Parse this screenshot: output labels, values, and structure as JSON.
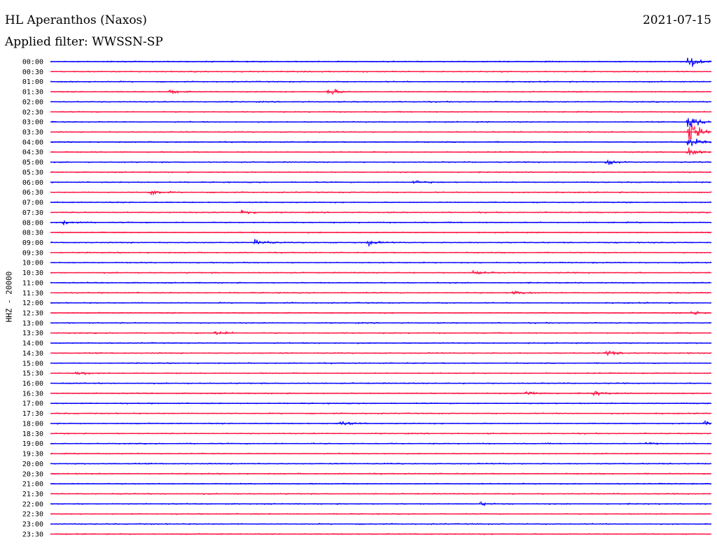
{
  "header": {
    "title": "HL Aperanthos (Naxos)",
    "date": "2021-07-15",
    "filter": "Applied filter: WWSSN-SP"
  },
  "chart_data": {
    "type": "line",
    "title": "HL Aperanthos (Naxos)",
    "ylabel": "HHZ - 20000",
    "colors": [
      "#0000ff",
      "#ff1040"
    ],
    "times": [
      "00:00",
      "00:30",
      "01:00",
      "01:30",
      "02:00",
      "02:30",
      "03:00",
      "03:30",
      "04:00",
      "04:30",
      "05:00",
      "05:30",
      "06:00",
      "06:30",
      "07:00",
      "07:30",
      "08:00",
      "08:30",
      "09:00",
      "09:30",
      "10:00",
      "10:30",
      "11:00",
      "11:30",
      "12:00",
      "12:30",
      "13:00",
      "13:30",
      "14:00",
      "14:30",
      "15:00",
      "15:30",
      "16:00",
      "16:30",
      "17:00",
      "17:30",
      "18:00",
      "18:30",
      "19:00",
      "19:30",
      "20:00",
      "20:30",
      "21:00",
      "21:30",
      "22:00",
      "22:30",
      "23:00",
      "23:30"
    ],
    "events": [
      {
        "row": 3,
        "pos": 0.18,
        "amp": 5
      },
      {
        "row": 3,
        "pos": 0.42,
        "amp": 9
      },
      {
        "row": 0,
        "pos": 0.965,
        "amp": 16
      },
      {
        "row": 6,
        "pos": 0.965,
        "amp": 20
      },
      {
        "row": 7,
        "pos": 0.965,
        "amp": 28
      },
      {
        "row": 8,
        "pos": 0.965,
        "amp": 18
      },
      {
        "row": 9,
        "pos": 0.965,
        "amp": 14
      },
      {
        "row": 10,
        "pos": 0.84,
        "amp": 10
      },
      {
        "row": 12,
        "pos": 0.55,
        "amp": 5
      },
      {
        "row": 13,
        "pos": 0.15,
        "amp": 8
      },
      {
        "row": 15,
        "pos": 0.29,
        "amp": 7
      },
      {
        "row": 16,
        "pos": 0.02,
        "amp": 6
      },
      {
        "row": 18,
        "pos": 0.31,
        "amp": 9
      },
      {
        "row": 18,
        "pos": 0.48,
        "amp": 6
      },
      {
        "row": 21,
        "pos": 0.64,
        "amp": 6
      },
      {
        "row": 23,
        "pos": 0.7,
        "amp": 6
      },
      {
        "row": 25,
        "pos": 0.97,
        "amp": 5
      },
      {
        "row": 27,
        "pos": 0.25,
        "amp": 6
      },
      {
        "row": 29,
        "pos": 0.84,
        "amp": 7
      },
      {
        "row": 31,
        "pos": 0.04,
        "amp": 6
      },
      {
        "row": 33,
        "pos": 0.72,
        "amp": 6
      },
      {
        "row": 33,
        "pos": 0.82,
        "amp": 6
      },
      {
        "row": 36,
        "pos": 0.44,
        "amp": 6
      },
      {
        "row": 36,
        "pos": 0.99,
        "amp": 5
      },
      {
        "row": 38,
        "pos": 0.9,
        "amp": 4
      },
      {
        "row": 44,
        "pos": 0.65,
        "amp": 4
      }
    ]
  }
}
